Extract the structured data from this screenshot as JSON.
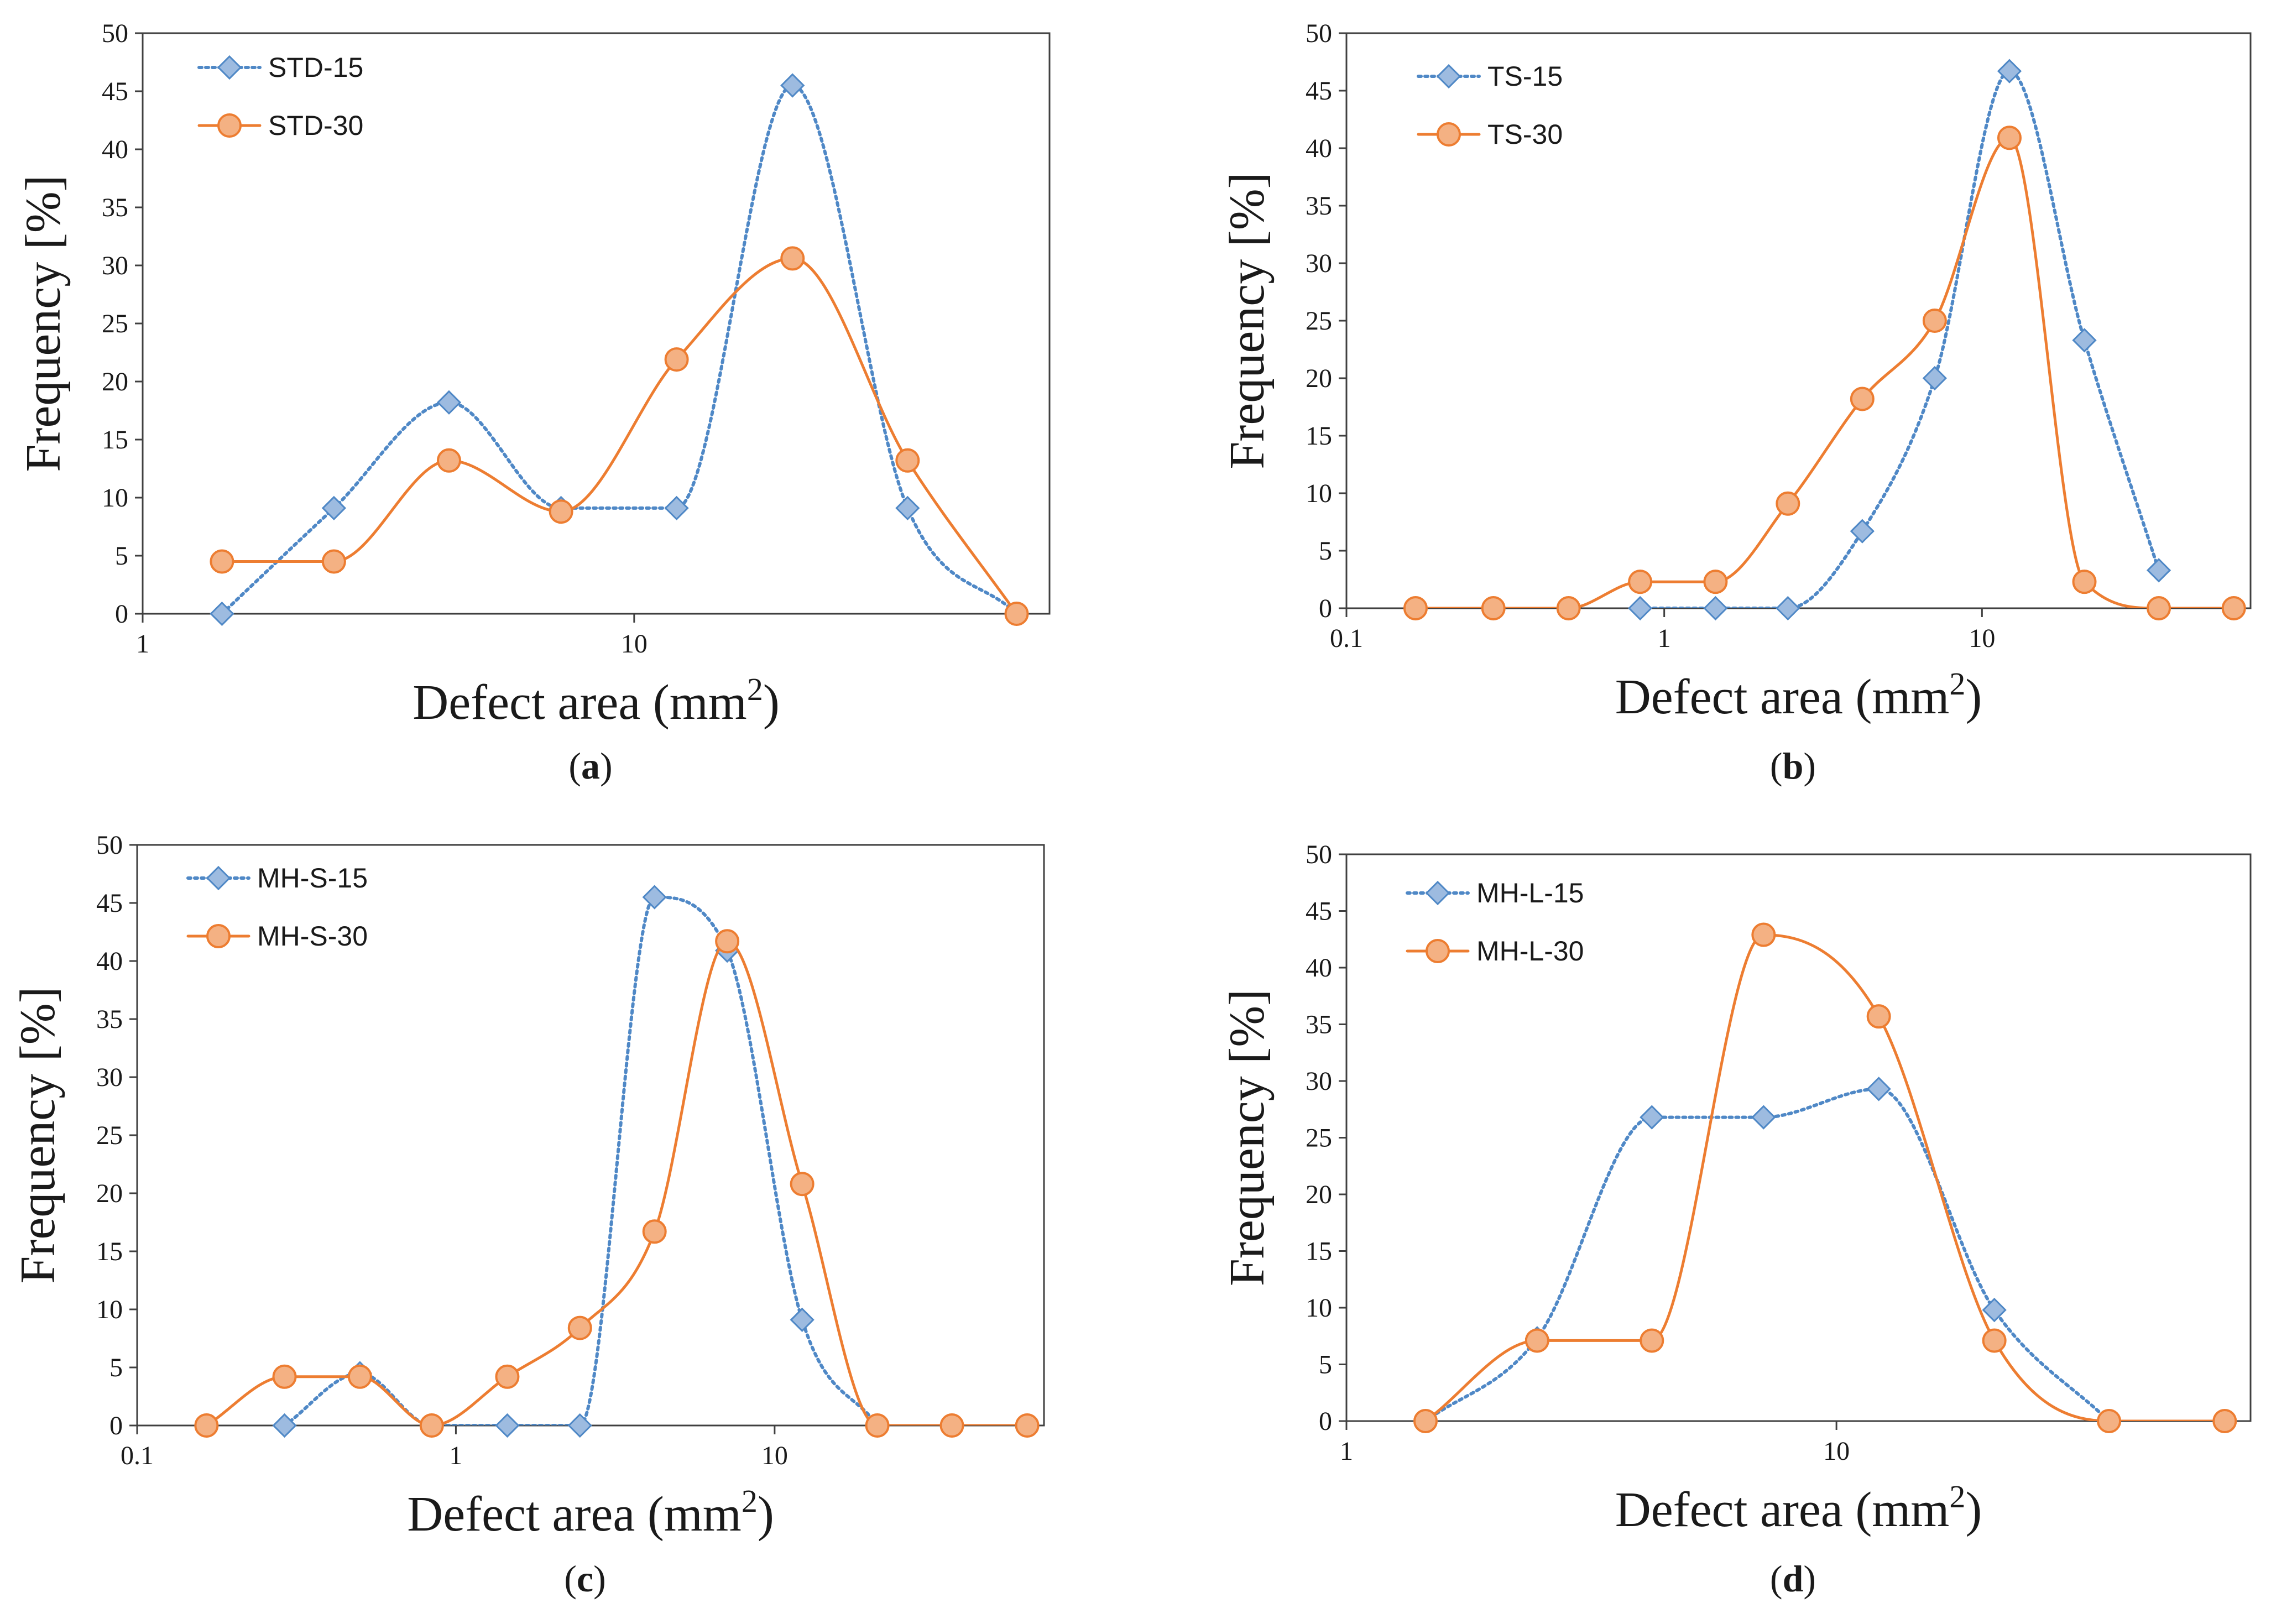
{
  "styles": {
    "s15_color": "#4f88c6",
    "s15_fill": "#9dbbe0",
    "s30_color": "#ed7d31",
    "s30_fill": "#f4b183",
    "axis_color": "#404040"
  },
  "chart_data": [
    {
      "id": "a",
      "type": "line",
      "panel_label": "a",
      "xlabel": "Defect area (mm",
      "xlabel_sup": "2",
      "xlabel_close": ")",
      "ylabel": "Frequency [%]",
      "xscale": "log",
      "xlim": [
        1,
        70
      ],
      "ylim": [
        0,
        50
      ],
      "x_ticks": [
        1,
        10
      ],
      "x_tick_labels": [
        "1",
        "10"
      ],
      "y_ticks": [
        0,
        5,
        10,
        15,
        20,
        25,
        30,
        35,
        40,
        45,
        50
      ],
      "legend_position": "top-left",
      "series": [
        {
          "name": "STD-15",
          "marker": "diamond",
          "line": "dotted",
          "x": [
            1.45,
            2.45,
            4.2,
            7.1,
            12.2,
            21,
            36,
            60
          ],
          "y": [
            0,
            9.1,
            18.2,
            9.1,
            9.1,
            45.5,
            9.1,
            0
          ]
        },
        {
          "name": "STD-30",
          "marker": "circle",
          "line": "solid",
          "x": [
            1.45,
            2.45,
            4.2,
            7.1,
            12.2,
            21,
            36,
            60
          ],
          "y": [
            4.5,
            4.5,
            13.2,
            8.8,
            21.9,
            30.6,
            13.2,
            0
          ]
        }
      ]
    },
    {
      "id": "b",
      "type": "line",
      "panel_label": "b",
      "xlabel": "Defect area (mm",
      "xlabel_sup": "2",
      "xlabel_close": ")",
      "ylabel": "Frequency [%]",
      "xscale": "log",
      "xlim": [
        0.1,
        70
      ],
      "ylim": [
        0,
        50
      ],
      "x_ticks": [
        0.1,
        1,
        10
      ],
      "x_tick_labels": [
        "0.1",
        "1",
        "10"
      ],
      "y_ticks": [
        0,
        5,
        10,
        15,
        20,
        25,
        30,
        35,
        40,
        45,
        50
      ],
      "legend_position": "top-left",
      "series": [
        {
          "name": "TS-15",
          "marker": "diamond",
          "line": "dotted",
          "x": [
            0.84,
            1.45,
            2.45,
            4.2,
            7.1,
            12.2,
            21,
            36
          ],
          "y": [
            0,
            0,
            0,
            6.7,
            20,
            46.7,
            23.3,
            3.3
          ]
        },
        {
          "name": "TS-30",
          "marker": "circle",
          "line": "solid",
          "x": [
            0.165,
            0.29,
            0.5,
            0.84,
            1.45,
            2.45,
            4.2,
            7.1,
            12.2,
            21,
            36,
            62
          ],
          "y": [
            0,
            0,
            0,
            2.3,
            2.3,
            9.1,
            18.2,
            25,
            40.9,
            2.3,
            0,
            0
          ]
        }
      ]
    },
    {
      "id": "c",
      "type": "line",
      "panel_label": "c",
      "xlabel": "Defect area (mm",
      "xlabel_sup": "2",
      "xlabel_close": ")",
      "ylabel": "Frequency [%]",
      "xscale": "log",
      "xlim": [
        0.1,
        70
      ],
      "ylim": [
        0,
        50
      ],
      "x_ticks": [
        0.1,
        1,
        10
      ],
      "x_tick_labels": [
        "0.1",
        "1",
        "10"
      ],
      "y_ticks": [
        0,
        5,
        10,
        15,
        20,
        25,
        30,
        35,
        40,
        45,
        50
      ],
      "legend_position": "top-left",
      "series": [
        {
          "name": "MH-S-15",
          "marker": "diamond",
          "line": "dotted",
          "x": [
            0.29,
            0.5,
            0.84,
            1.45,
            2.45,
            4.2,
            7.1,
            12.2,
            21
          ],
          "y": [
            0,
            4.5,
            0,
            0,
            0,
            45.5,
            40.9,
            9.1,
            0
          ]
        },
        {
          "name": "MH-S-30",
          "marker": "circle",
          "line": "solid",
          "x": [
            0.165,
            0.29,
            0.5,
            0.84,
            1.45,
            2.45,
            4.2,
            7.1,
            12.2,
            21,
            36,
            62
          ],
          "y": [
            0,
            4.2,
            4.2,
            0,
            4.2,
            8.4,
            16.7,
            41.7,
            20.8,
            0,
            0,
            0
          ]
        }
      ]
    },
    {
      "id": "d",
      "type": "line",
      "panel_label": "d",
      "xlabel": "Defect area (mm",
      "xlabel_sup": "2",
      "xlabel_close": ")",
      "ylabel": "Frequency [%]",
      "xscale": "log",
      "xlim": [
        1,
        70
      ],
      "ylim": [
        0,
        50
      ],
      "x_ticks": [
        1,
        10
      ],
      "x_tick_labels": [
        "1",
        "10"
      ],
      "y_ticks": [
        0,
        5,
        10,
        15,
        20,
        25,
        30,
        35,
        40,
        45,
        50
      ],
      "legend_position": "top-left",
      "series": [
        {
          "name": "MH-L-15",
          "marker": "diamond",
          "line": "dotted",
          "x": [
            1.45,
            2.45,
            4.2,
            7.1,
            12.2,
            21,
            36
          ],
          "y": [
            0,
            7.3,
            26.8,
            26.8,
            29.3,
            9.8,
            0
          ]
        },
        {
          "name": "MH-L-30",
          "marker": "circle",
          "line": "solid",
          "x": [
            1.45,
            2.45,
            4.2,
            7.1,
            12.2,
            21,
            36,
            62
          ],
          "y": [
            0,
            7.1,
            7.1,
            42.9,
            35.7,
            7.1,
            0,
            0
          ]
        }
      ]
    }
  ]
}
